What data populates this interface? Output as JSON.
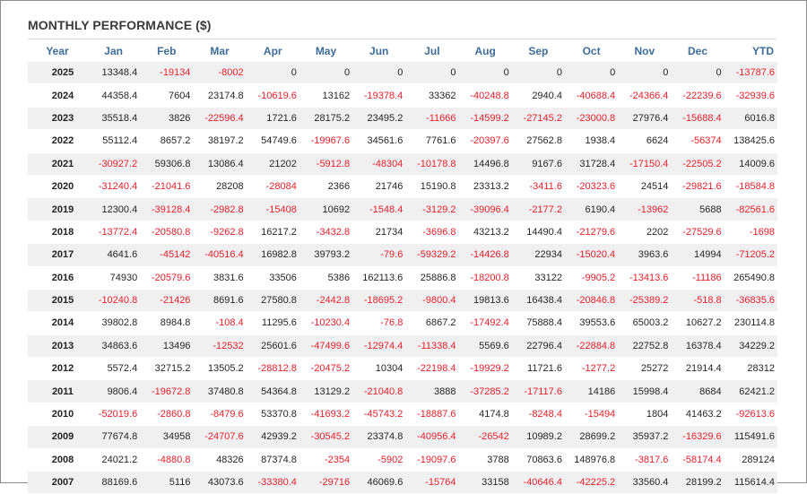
{
  "title": "MONTHLY PERFORMANCE ($)",
  "colors": {
    "header": "#3d6d98",
    "negative": "#e8212b",
    "positive": "#262626",
    "stripe": "#f0f0f0"
  },
  "columns": [
    "Year",
    "Jan",
    "Feb",
    "Mar",
    "Apr",
    "May",
    "Jun",
    "Jul",
    "Aug",
    "Sep",
    "Oct",
    "Nov",
    "Dec",
    "YTD"
  ],
  "rows": [
    [
      "2025",
      "13348.4",
      "-19134",
      "-8002",
      "0",
      "0",
      "0",
      "0",
      "0",
      "0",
      "0",
      "0",
      "0",
      "-13787.6"
    ],
    [
      "2024",
      "44358.4",
      "7604",
      "23174.8",
      "-10619.6",
      "13162",
      "-19378.4",
      "33362",
      "-40248.8",
      "2940.4",
      "-40688.4",
      "-24366.4",
      "-22239.6",
      "-32939.6"
    ],
    [
      "2023",
      "35518.4",
      "3826",
      "-22596.4",
      "1721.6",
      "28175.2",
      "23495.2",
      "-11666",
      "-14599.2",
      "-27145.2",
      "-23000.8",
      "27976.4",
      "-15688.4",
      "6016.8"
    ],
    [
      "2022",
      "55112.4",
      "8657.2",
      "38197.2",
      "54749.6",
      "-19967.6",
      "34561.6",
      "7761.6",
      "-20397.6",
      "27562.8",
      "1938.4",
      "6624",
      "-56374",
      "138425.6"
    ],
    [
      "2021",
      "-30927.2",
      "59306.8",
      "13086.4",
      "21202",
      "-5912.8",
      "-48304",
      "-10178.8",
      "14496.8",
      "9167.6",
      "31728.4",
      "-17150.4",
      "-22505.2",
      "14009.6"
    ],
    [
      "2020",
      "-31240.4",
      "-21041.6",
      "28208",
      "-28084",
      "2366",
      "21746",
      "15190.8",
      "23313.2",
      "-3411.6",
      "-20323.6",
      "24514",
      "-29821.6",
      "-18584.8"
    ],
    [
      "2019",
      "12300.4",
      "-39128.4",
      "-2982.8",
      "-15408",
      "10692",
      "-1548.4",
      "-3129.2",
      "-39096.4",
      "-2177.2",
      "6190.4",
      "-13962",
      "5688",
      "-82561.6"
    ],
    [
      "2018",
      "-13772.4",
      "-20580.8",
      "-9262.8",
      "16217.2",
      "-3432.8",
      "21734",
      "-3696.8",
      "43213.2",
      "14490.4",
      "-21279.6",
      "2202",
      "-27529.6",
      "-1698"
    ],
    [
      "2017",
      "4641.6",
      "-45142",
      "-40516.4",
      "16982.8",
      "39793.2",
      "-79.6",
      "-59329.2",
      "-14426.8",
      "22934",
      "-15020.4",
      "3963.6",
      "14994",
      "-71205.2"
    ],
    [
      "2016",
      "74930",
      "-20579.6",
      "3831.6",
      "33506",
      "5386",
      "162113.6",
      "25886.8",
      "-18200.8",
      "33122",
      "-9905.2",
      "-13413.6",
      "-11186",
      "265490.8"
    ],
    [
      "2015",
      "-10240.8",
      "-21426",
      "8691.6",
      "27580.8",
      "-2442.8",
      "-18695.2",
      "-9800.4",
      "19813.6",
      "16438.4",
      "-20846.8",
      "-25389.2",
      "-518.8",
      "-36835.6"
    ],
    [
      "2014",
      "39802.8",
      "8984.8",
      "-108.4",
      "11295.6",
      "-10230.4",
      "-76.8",
      "6867.2",
      "-17492.4",
      "75888.4",
      "39553.6",
      "65003.2",
      "10627.2",
      "230114.8"
    ],
    [
      "2013",
      "34863.6",
      "13496",
      "-12532",
      "25601.6",
      "-47499.6",
      "-12974.4",
      "-11338.4",
      "5569.6",
      "22796.4",
      "-22884.8",
      "22752.8",
      "16378.4",
      "34229.2"
    ],
    [
      "2012",
      "5572.4",
      "32715.2",
      "13505.2",
      "-28812.8",
      "-20475.2",
      "10304",
      "-22198.4",
      "-19929.2",
      "11721.6",
      "-1277.2",
      "25272",
      "21914.4",
      "28312"
    ],
    [
      "2011",
      "9806.4",
      "-19672.8",
      "37480.8",
      "54364.8",
      "13129.2",
      "-21040.8",
      "3888",
      "-37285.2",
      "-17117.6",
      "14186",
      "15998.4",
      "8684",
      "62421.2"
    ],
    [
      "2010",
      "-52019.6",
      "-2860.8",
      "-8479.6",
      "53370.8",
      "-41693.2",
      "-45743.2",
      "-18887.6",
      "4174.8",
      "-8248.4",
      "-15494",
      "1804",
      "41463.2",
      "-92613.6"
    ],
    [
      "2009",
      "77674.8",
      "34958",
      "-24707.6",
      "42939.2",
      "-30545.2",
      "23374.8",
      "-40956.4",
      "-26542",
      "10989.2",
      "28699.2",
      "35937.2",
      "-16329.6",
      "115491.6"
    ],
    [
      "2008",
      "24021.2",
      "-4880.8",
      "48326",
      "87374.8",
      "-2354",
      "-5902",
      "-19097.6",
      "3788",
      "70863.6",
      "148976.8",
      "-3817.6",
      "-58174.4",
      "289124"
    ],
    [
      "2007",
      "88169.6",
      "5116",
      "43073.6",
      "-33380.4",
      "-29716",
      "46069.6",
      "-15764",
      "33158",
      "-40646.4",
      "-42225.2",
      "33560.4",
      "28199.2",
      "115614.4"
    ]
  ]
}
